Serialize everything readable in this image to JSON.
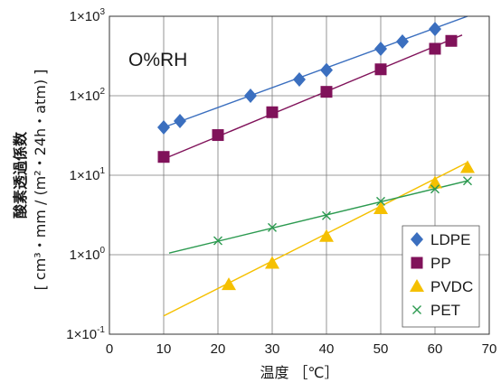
{
  "chart_data": {
    "type": "scatter",
    "annotation": "O%RH",
    "xlabel": "温度 ［℃］",
    "ylabel_main": "酸素透過係数",
    "ylabel_unit": "[ cm³・mm / (m²・24h・atm) ]",
    "xlim": [
      0,
      70
    ],
    "ylim_log10": [
      -1,
      3
    ],
    "y_scale": "log",
    "grid": true,
    "legend_position": "bottom-right",
    "x_ticks": [
      "0",
      "10",
      "20",
      "30",
      "40",
      "50",
      "60",
      "70"
    ],
    "y_ticks": [
      {
        "base": "1×10",
        "exp": "-1"
      },
      {
        "base": "1×10",
        "exp": "0"
      },
      {
        "base": "1×10",
        "exp": "1"
      },
      {
        "base": "1×10",
        "exp": "2"
      },
      {
        "base": "1×10",
        "exp": "3"
      }
    ],
    "series": [
      {
        "name": "LDPE",
        "color": "#3b6fbf",
        "marker": "diamond",
        "points": [
          [
            10,
            40
          ],
          [
            13,
            48
          ],
          [
            26,
            100
          ],
          [
            35,
            160
          ],
          [
            40,
            210
          ],
          [
            50,
            390
          ],
          [
            54,
            480
          ],
          [
            60,
            690
          ]
        ],
        "fit": [
          [
            10,
            40
          ],
          [
            66,
            1000
          ]
        ]
      },
      {
        "name": "PP",
        "color": "#80125a",
        "marker": "square",
        "points": [
          [
            10,
            17
          ],
          [
            20,
            32
          ],
          [
            30,
            62
          ],
          [
            40,
            112
          ],
          [
            50,
            215
          ],
          [
            60,
            390
          ],
          [
            63,
            490
          ]
        ],
        "fit": [
          [
            10,
            16
          ],
          [
            65,
            580
          ]
        ]
      },
      {
        "name": "PVDC",
        "color": "#f5c000",
        "marker": "triangle",
        "points": [
          [
            22,
            0.42
          ],
          [
            30,
            0.78
          ],
          [
            40,
            1.7
          ],
          [
            50,
            3.8
          ],
          [
            60,
            8.0
          ],
          [
            66,
            12.5
          ]
        ],
        "fit": [
          [
            10,
            0.17
          ],
          [
            66,
            14.5
          ]
        ]
      },
      {
        "name": "PET",
        "color": "#2c9a50",
        "marker": "x",
        "points": [
          [
            20,
            1.5
          ],
          [
            30,
            2.2
          ],
          [
            40,
            3.1
          ],
          [
            50,
            4.7
          ],
          [
            60,
            6.7
          ],
          [
            66,
            8.5
          ]
        ],
        "fit": [
          [
            11,
            1.05
          ],
          [
            66,
            8.5
          ]
        ]
      }
    ]
  }
}
